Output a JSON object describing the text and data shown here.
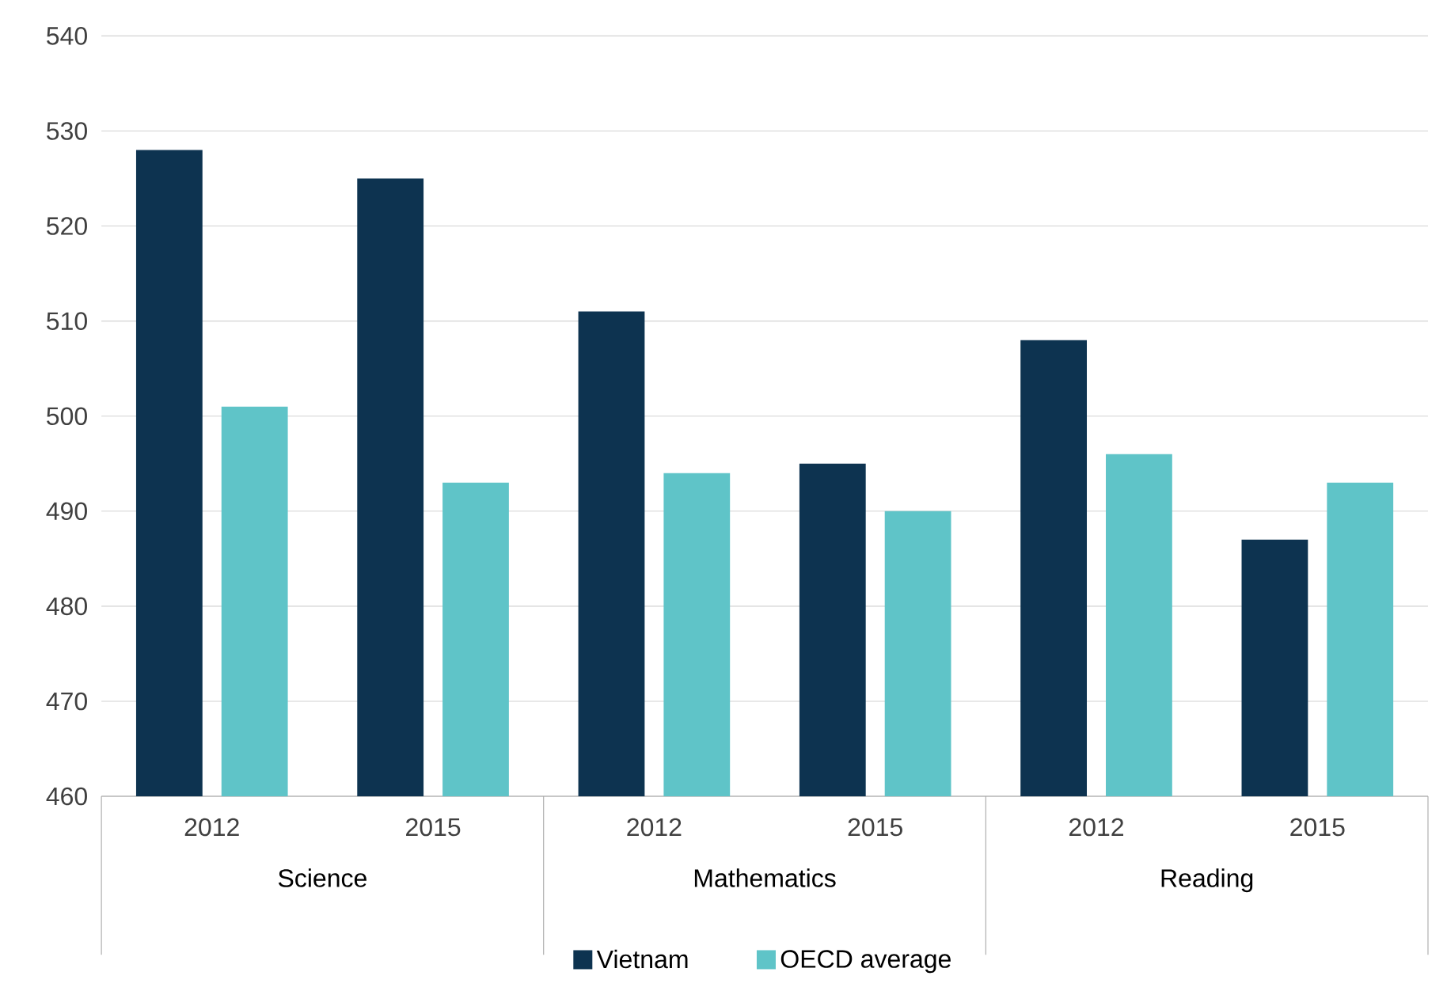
{
  "chart_data": {
    "type": "bar",
    "categories": [
      "2012",
      "2015",
      "2012",
      "2015",
      "2012",
      "2015"
    ],
    "annotations": [
      "Science",
      "Mathematics",
      "Reading"
    ],
    "series": [
      {
        "name": "Vietnam",
        "color": "#0d3350",
        "values": [
          528,
          525,
          511,
          495,
          508,
          487
        ]
      },
      {
        "name": "OECD average",
        "color": "#5fc4c8",
        "values": [
          501,
          493,
          494,
          490,
          496,
          493
        ]
      }
    ],
    "ylim": [
      460,
      540
    ],
    "yticks": [
      460,
      470,
      480,
      490,
      500,
      510,
      520,
      530,
      540
    ],
    "grid": "y",
    "legend": "bottom"
  }
}
